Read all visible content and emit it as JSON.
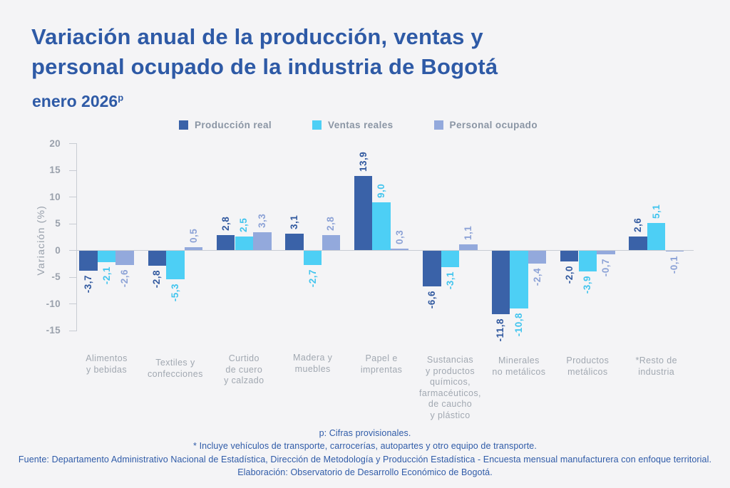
{
  "title": {
    "line1": "Variación anual de la producción, ventas y",
    "line2": "personal ocupado de la industria de Bogotá"
  },
  "subtitle": {
    "text": "enero 2026",
    "superscript": "p"
  },
  "chart_data": {
    "type": "bar",
    "title": "Variación anual de la producción, ventas y personal ocupado de la industria de Bogotá — enero 2026p",
    "xlabel": "",
    "ylabel": "Variación (%)",
    "ylim": [
      -15,
      20
    ],
    "yticks": [
      20,
      15,
      10,
      5,
      0,
      -5,
      -10,
      -15
    ],
    "grid": false,
    "legend_position": "top",
    "decimal_separator": ",",
    "categories": [
      "Alimentos\ny bebidas",
      "Textiles y\nconfecciones",
      "Curtido\nde cuero\ny calzado",
      "Madera y\nmuebles",
      "Papel e\nimprentas",
      "Sustancias\ny productos\nquímicos,\nfarmacéuticos,\nde caucho\ny plástico",
      "Minerales\nno metálicos",
      "Productos\nmetálicos",
      "*Resto de\nindustria"
    ],
    "series": [
      {
        "name": "Producción real",
        "color": "#3A62A8",
        "label_color": "#31599F",
        "values": [
          -3.7,
          -2.8,
          2.8,
          3.1,
          13.9,
          -6.6,
          -11.8,
          -2.0,
          2.6
        ],
        "labels": [
          "-3,7",
          "-2,8",
          "2,8",
          "3,1",
          "13,9",
          "-6,6",
          "-11,8",
          "-2,0",
          "2,6"
        ]
      },
      {
        "name": "Ventas reales",
        "color": "#4DCFF5",
        "label_color": "#41C4EE",
        "values": [
          -2.1,
          -5.3,
          2.5,
          -2.7,
          9.0,
          -3.1,
          -10.8,
          -3.9,
          5.1
        ],
        "labels": [
          "-2,1",
          "-5,3",
          "2,5",
          "-2,7",
          "9,0",
          "-3,1",
          "-10,8",
          "-3,9",
          "5,1"
        ]
      },
      {
        "name": "Personal ocupado",
        "color": "#93A9DC",
        "label_color": "#8CA2D6",
        "values": [
          -2.6,
          0.5,
          3.3,
          2.8,
          0.3,
          1.1,
          -2.4,
          -0.7,
          -0.1
        ],
        "labels": [
          "-2,6",
          "0,5",
          "3,3",
          "2,8",
          "0,3",
          "1,1",
          "-2,4",
          "-0,7",
          "-0,1"
        ]
      }
    ]
  },
  "footer": {
    "lines": [
      "p: Cifras provisionales.",
      "*  Incluye vehículos de transporte, carrocerías, autopartes y otro equipo de transporte.",
      "Fuente: Departamento Administrativo Nacional de Estadística, Dirección de Metodología y Producción Estadística - Encuesta mensual manufacturera con enfoque territorial.",
      "Elaboración: Observatorio de Desarrollo Económico de Bogotá."
    ]
  }
}
